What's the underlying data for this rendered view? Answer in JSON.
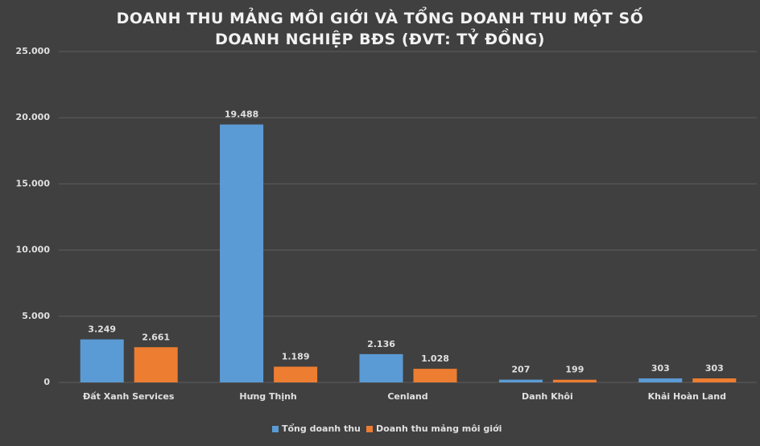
{
  "chart_data": {
    "type": "bar",
    "title": "DOANH THU MẢNG MÔI GIỚI VÀ TỔNG DOANH THU MỘT SỐ DOANH NGHIỆP BĐS (ĐVT: TỶ ĐỒNG)",
    "categories": [
      "Đất Xanh Services",
      "Hưng Thịnh",
      "Cenland",
      "Danh Khôi",
      "Khải Hoàn Land"
    ],
    "series": [
      {
        "name": "Tổng doanh thu",
        "color": "#5b9bd5",
        "values": [
          3249,
          19488,
          2136,
          207,
          303
        ],
        "value_labels": [
          "3.249",
          "19.488",
          "2.136",
          "207",
          "303"
        ]
      },
      {
        "name": "Doanh thu mảng môi giới",
        "color": "#ed7d31",
        "values": [
          2661,
          1189,
          1028,
          199,
          303
        ],
        "value_labels": [
          "2.661",
          "1.189",
          "1.028",
          "199",
          "303"
        ]
      }
    ],
    "ylim": [
      0,
      25000
    ],
    "yticks": [
      {
        "value": 0,
        "label": "0"
      },
      {
        "value": 5000,
        "label": "5.000"
      },
      {
        "value": 10000,
        "label": "10.000"
      },
      {
        "value": 15000,
        "label": "15.000"
      },
      {
        "value": 20000,
        "label": "20.000"
      },
      {
        "value": 25000,
        "label": "25.000"
      }
    ],
    "grid": true,
    "legend": "bottom"
  }
}
